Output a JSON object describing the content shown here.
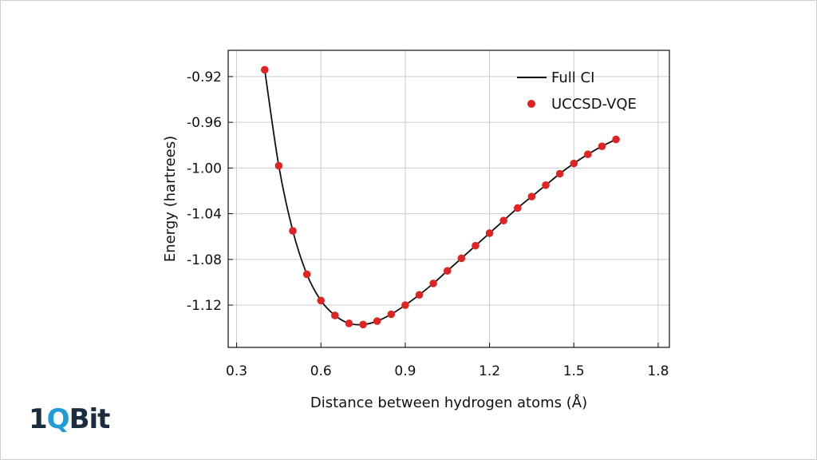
{
  "chart_data": {
    "type": "line",
    "xlabel": "Distance between hydrogen atoms (Å)",
    "ylabel": "Energy (hartrees)",
    "xlim": [
      0.27,
      1.84
    ],
    "ylim": [
      -1.157,
      -0.897
    ],
    "xticks": [
      0.3,
      0.6,
      0.9,
      1.2,
      1.5,
      1.8
    ],
    "xtick_labels": [
      "0.3",
      "0.6",
      "0.9",
      "1.2",
      "1.5",
      "1.8"
    ],
    "yticks": [
      -0.92,
      -0.96,
      -1.0,
      -1.04,
      -1.08,
      -1.12
    ],
    "ytick_labels": [
      "-0.92",
      "-0.96",
      "-1.00",
      "-1.04",
      "-1.08",
      "-1.12"
    ],
    "grid": true,
    "legend_position": "top-right",
    "colors": {
      "full_ci": "#111111",
      "vqe": "#e02424"
    },
    "series": [
      {
        "name": "Full CI",
        "style": "line",
        "x": [
          0.4,
          0.45,
          0.5,
          0.55,
          0.6,
          0.65,
          0.7,
          0.75,
          0.8,
          0.85,
          0.9,
          0.95,
          1.0,
          1.05,
          1.1,
          1.15,
          1.2,
          1.25,
          1.3,
          1.35,
          1.4,
          1.45,
          1.5,
          1.55,
          1.6,
          1.65
        ],
        "y": [
          -0.914,
          -0.998,
          -1.055,
          -1.093,
          -1.116,
          -1.129,
          -1.136,
          -1.137,
          -1.134,
          -1.128,
          -1.12,
          -1.111,
          -1.101,
          -1.09,
          -1.079,
          -1.068,
          -1.057,
          -1.046,
          -1.035,
          -1.025,
          -1.015,
          -1.005,
          -0.996,
          -0.988,
          -0.981,
          -0.975
        ]
      },
      {
        "name": "UCCSD-VQE",
        "style": "scatter",
        "x": [
          0.4,
          0.45,
          0.5,
          0.55,
          0.6,
          0.65,
          0.7,
          0.75,
          0.8,
          0.85,
          0.9,
          0.95,
          1.0,
          1.05,
          1.1,
          1.15,
          1.2,
          1.25,
          1.3,
          1.35,
          1.4,
          1.45,
          1.5,
          1.55,
          1.6,
          1.65
        ],
        "y": [
          -0.914,
          -0.998,
          -1.055,
          -1.093,
          -1.116,
          -1.129,
          -1.136,
          -1.137,
          -1.134,
          -1.128,
          -1.12,
          -1.111,
          -1.101,
          -1.09,
          -1.079,
          -1.068,
          -1.057,
          -1.046,
          -1.035,
          -1.025,
          -1.015,
          -1.005,
          -0.996,
          -0.988,
          -0.981,
          -0.975
        ]
      }
    ]
  },
  "logo": {
    "part1": "1",
    "part2": "Q",
    "part3": "Bit"
  }
}
